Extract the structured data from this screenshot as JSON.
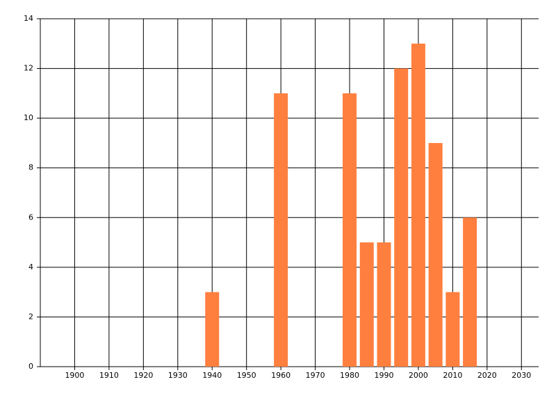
{
  "chart_data": {
    "type": "bar",
    "x": [
      1940,
      1960,
      1980,
      1985,
      1990,
      1995,
      2000,
      2005,
      2010,
      2015
    ],
    "values": [
      3,
      11,
      11,
      5,
      5,
      12,
      13,
      9,
      3,
      6
    ],
    "color": "#ff7f3f",
    "xlim": [
      1890,
      2035
    ],
    "xticks": [
      1900,
      1910,
      1920,
      1930,
      1940,
      1950,
      1960,
      1970,
      1980,
      1990,
      2000,
      2010,
      2020,
      2030
    ],
    "ylim": [
      0,
      14
    ],
    "yticks": [
      0,
      2,
      4,
      6,
      8,
      10,
      12,
      14
    ],
    "grid": true
  }
}
